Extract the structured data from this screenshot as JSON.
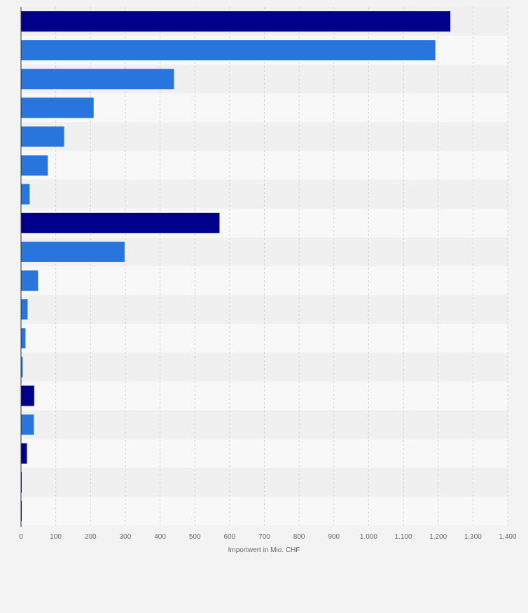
{
  "chart_data": {
    "type": "bar",
    "orientation": "horizontal",
    "title": "",
    "xlabel": "Importwert in Mio. CHF",
    "ylabel": "",
    "xlim": [
      0,
      1400
    ],
    "x_ticks": [
      {
        "value": 0,
        "label": "0"
      },
      {
        "value": 100,
        "label": "100"
      },
      {
        "value": 200,
        "label": "200"
      },
      {
        "value": 300,
        "label": "300"
      },
      {
        "value": 400,
        "label": "400"
      },
      {
        "value": 500,
        "label": "500"
      },
      {
        "value": 600,
        "label": "600"
      },
      {
        "value": 700,
        "label": "700"
      },
      {
        "value": 800,
        "label": "800"
      },
      {
        "value": 900,
        "label": "900"
      },
      {
        "value": 1000,
        "label": "1.000"
      },
      {
        "value": 1100,
        "label": "1.100"
      },
      {
        "value": 1200,
        "label": "1.200"
      },
      {
        "value": 1300,
        "label": "1.300"
      },
      {
        "value": 1400,
        "label": "1.400"
      }
    ],
    "grid": true,
    "colors": {
      "dark": "#00008b",
      "light": "#2876dd",
      "axis": "#333333",
      "grid": "#d4d4d4",
      "tick_label": "#666666",
      "band_light": "#f8f8f8",
      "band_dark": "#f0f0f0"
    },
    "bars": [
      {
        "value": 1235,
        "color": "dark"
      },
      {
        "value": 1192,
        "color": "light"
      },
      {
        "value": 440,
        "color": "light"
      },
      {
        "value": 209,
        "color": "light"
      },
      {
        "value": 124,
        "color": "light"
      },
      {
        "value": 77,
        "color": "light"
      },
      {
        "value": 25,
        "color": "light"
      },
      {
        "value": 571,
        "color": "dark"
      },
      {
        "value": 298,
        "color": "light"
      },
      {
        "value": 49,
        "color": "light"
      },
      {
        "value": 19,
        "color": "light"
      },
      {
        "value": 13,
        "color": "light"
      },
      {
        "value": 5,
        "color": "light"
      },
      {
        "value": 38,
        "color": "dark"
      },
      {
        "value": 37,
        "color": "light"
      },
      {
        "value": 17,
        "color": "dark"
      },
      {
        "value": 2,
        "color": "dark"
      },
      {
        "value": 2,
        "color": "dark"
      }
    ]
  }
}
